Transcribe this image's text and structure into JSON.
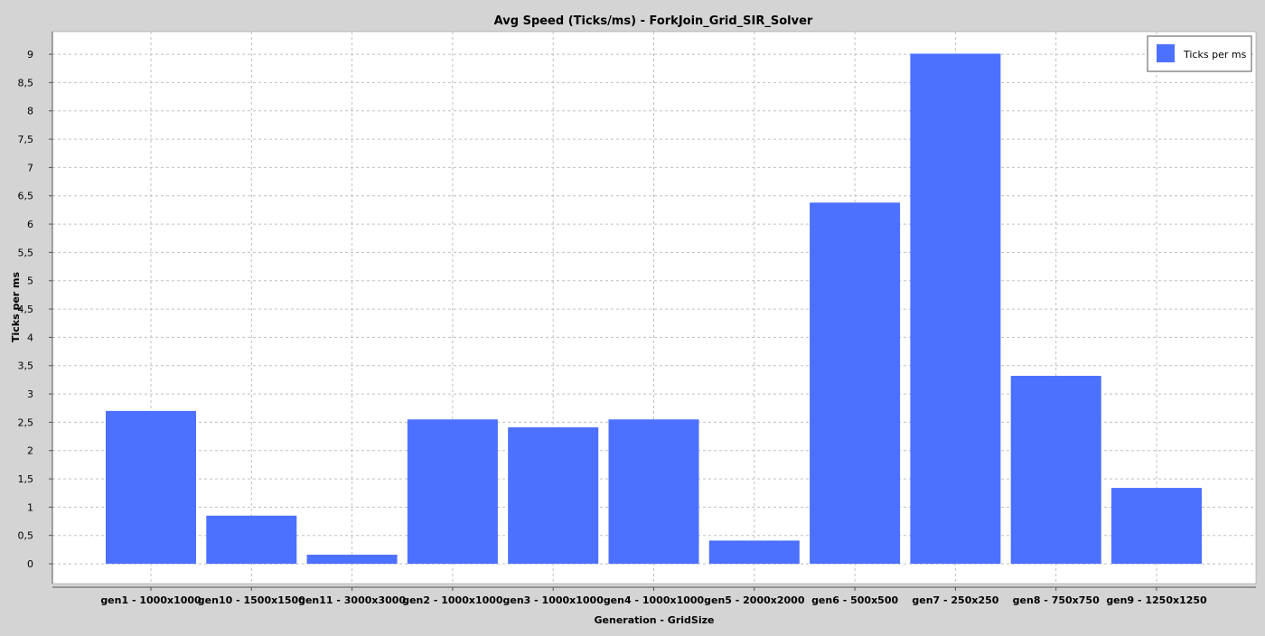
{
  "chart_data": {
    "type": "bar",
    "title": "Avg Speed (Ticks/ms) - ForkJoin_Grid_SIR_Solver",
    "xlabel": "Generation - GridSize",
    "ylabel": "Ticks per ms",
    "categories": [
      "gen1 - 1000x1000",
      "gen10 - 1500x1500",
      "gen11 - 3000x3000",
      "gen2 - 1000x1000",
      "gen3 - 1000x1000",
      "gen4 - 1000x1000",
      "gen5 - 2000x2000",
      "gen6 - 500x500",
      "gen7 - 250x250",
      "gen8 - 750x750",
      "gen9 - 1250x1250"
    ],
    "series": [
      {
        "name": "Ticks per ms",
        "color": "#4c70ff",
        "values": [
          2.7,
          0.85,
          0.16,
          2.55,
          2.41,
          2.55,
          0.41,
          6.38,
          9.01,
          3.32,
          1.34
        ]
      }
    ],
    "ylim": [
      -0.35,
      9.4
    ],
    "yticks": [
      0,
      0.5,
      1,
      1.5,
      2,
      2.5,
      3,
      3.5,
      4,
      4.5,
      5,
      5.5,
      6,
      6.5,
      7,
      7.5,
      8,
      8.5,
      9
    ],
    "ytick_labels": [
      "0",
      "0,5",
      "1",
      "1,5",
      "2",
      "2,5",
      "3",
      "3,5",
      "4",
      "4,5",
      "5",
      "5,5",
      "6",
      "6,5",
      "7",
      "7,5",
      "8",
      "8,5",
      "9"
    ],
    "grid": true,
    "legend_position": "top-right",
    "colors": {
      "background": "#d4d4d4",
      "plot_background": "#ffffff",
      "grid": "#c0c0c0"
    }
  }
}
